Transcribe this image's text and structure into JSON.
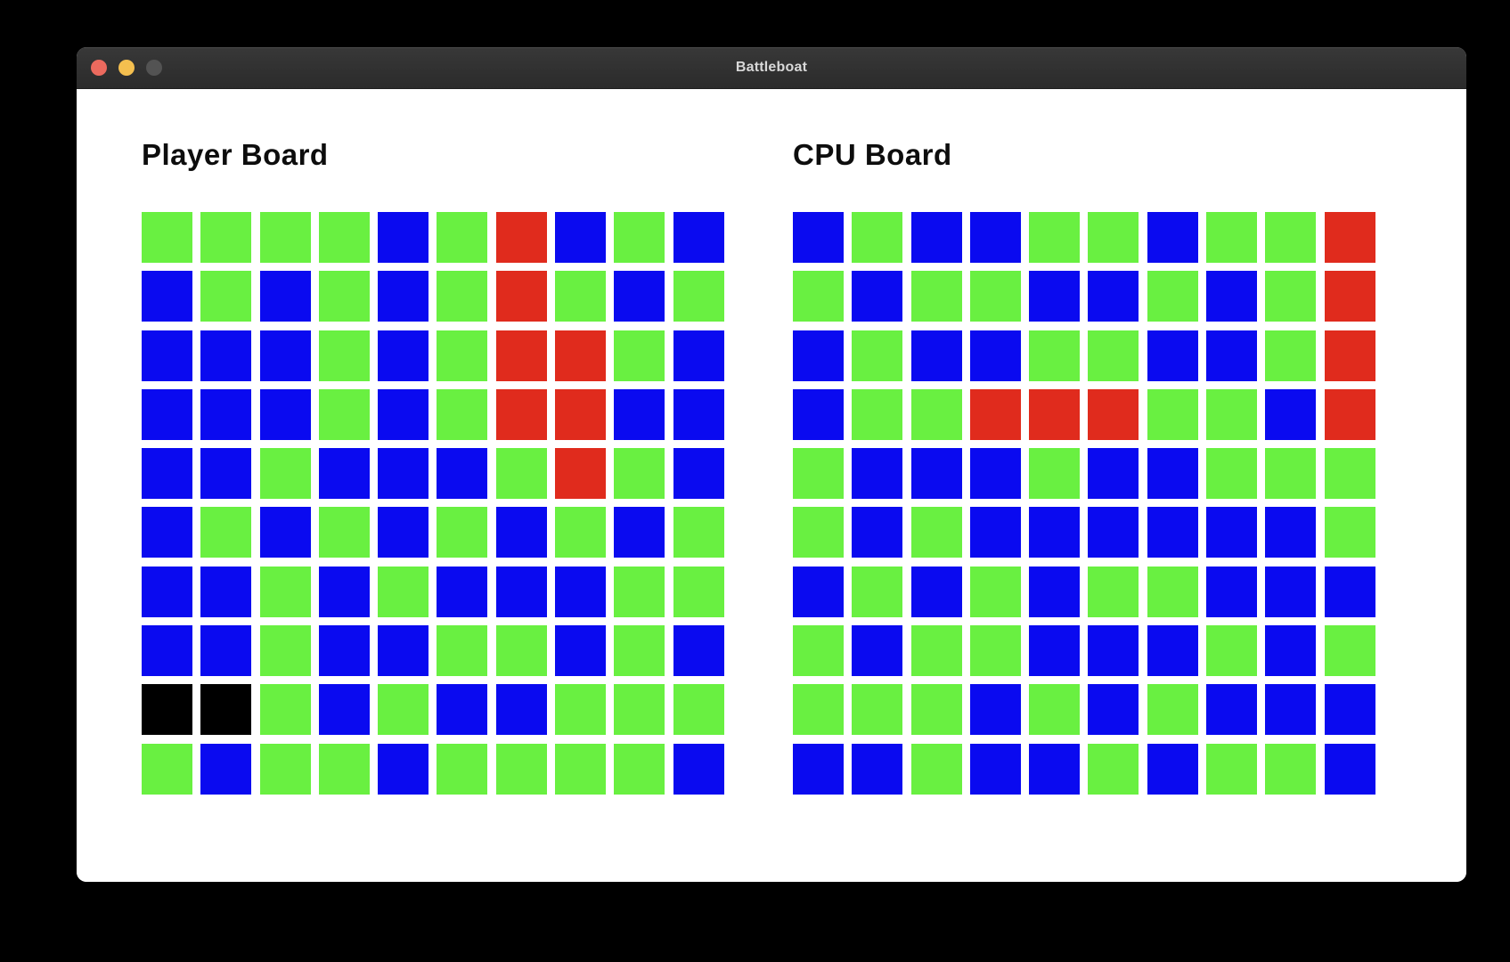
{
  "window": {
    "title": "Battleboat",
    "traffic_lights": [
      {
        "name": "close-button",
        "color": "#ec6a5e"
      },
      {
        "name": "minimize-button",
        "color": "#f4bf4f"
      },
      {
        "name": "zoom-button",
        "color": "#535353"
      }
    ]
  },
  "colors": {
    "page_bg": "#000000",
    "window_bg": "#ffffff",
    "titlebar_bg": "#2e2e2e",
    "titlebar_text": "#d8d8d8",
    "grid_gap": "#ffffff"
  },
  "cell_colors": {
    "G": "#69f041",
    "B": "#0a0af0",
    "R": "#e02b1d",
    "K": "#000000"
  },
  "boards": [
    {
      "id": "player",
      "title": "Player Board",
      "clickable": false,
      "grid": [
        [
          "G",
          "G",
          "G",
          "G",
          "B",
          "G",
          "R",
          "B",
          "G",
          "B"
        ],
        [
          "B",
          "G",
          "B",
          "G",
          "B",
          "G",
          "R",
          "G",
          "B",
          "G"
        ],
        [
          "B",
          "B",
          "B",
          "G",
          "B",
          "G",
          "R",
          "R",
          "G",
          "B"
        ],
        [
          "B",
          "B",
          "B",
          "G",
          "B",
          "G",
          "R",
          "R",
          "B",
          "B"
        ],
        [
          "B",
          "B",
          "G",
          "B",
          "B",
          "B",
          "G",
          "R",
          "G",
          "B"
        ],
        [
          "B",
          "G",
          "B",
          "G",
          "B",
          "G",
          "B",
          "G",
          "B",
          "G"
        ],
        [
          "B",
          "B",
          "G",
          "B",
          "G",
          "B",
          "B",
          "B",
          "G",
          "G"
        ],
        [
          "B",
          "B",
          "G",
          "B",
          "B",
          "G",
          "G",
          "B",
          "G",
          "B"
        ],
        [
          "K",
          "K",
          "G",
          "B",
          "G",
          "B",
          "B",
          "G",
          "G",
          "G"
        ],
        [
          "G",
          "B",
          "G",
          "G",
          "B",
          "G",
          "G",
          "G",
          "G",
          "B"
        ]
      ]
    },
    {
      "id": "cpu",
      "title": "CPU Board",
      "clickable": true,
      "grid": [
        [
          "B",
          "G",
          "B",
          "B",
          "G",
          "G",
          "B",
          "G",
          "G",
          "R"
        ],
        [
          "G",
          "B",
          "G",
          "G",
          "B",
          "B",
          "G",
          "B",
          "G",
          "R"
        ],
        [
          "B",
          "G",
          "B",
          "B",
          "G",
          "G",
          "B",
          "B",
          "G",
          "R"
        ],
        [
          "B",
          "G",
          "G",
          "R",
          "R",
          "R",
          "G",
          "G",
          "B",
          "R"
        ],
        [
          "G",
          "B",
          "B",
          "B",
          "G",
          "B",
          "B",
          "G",
          "G",
          "G"
        ],
        [
          "G",
          "B",
          "G",
          "B",
          "B",
          "B",
          "B",
          "B",
          "B",
          "G"
        ],
        [
          "B",
          "G",
          "B",
          "G",
          "B",
          "G",
          "G",
          "B",
          "B",
          "B"
        ],
        [
          "G",
          "B",
          "G",
          "G",
          "B",
          "B",
          "B",
          "G",
          "B",
          "G"
        ],
        [
          "G",
          "G",
          "G",
          "B",
          "G",
          "B",
          "G",
          "B",
          "B",
          "B"
        ],
        [
          "B",
          "B",
          "G",
          "B",
          "B",
          "G",
          "B",
          "G",
          "G",
          "B"
        ]
      ]
    }
  ]
}
